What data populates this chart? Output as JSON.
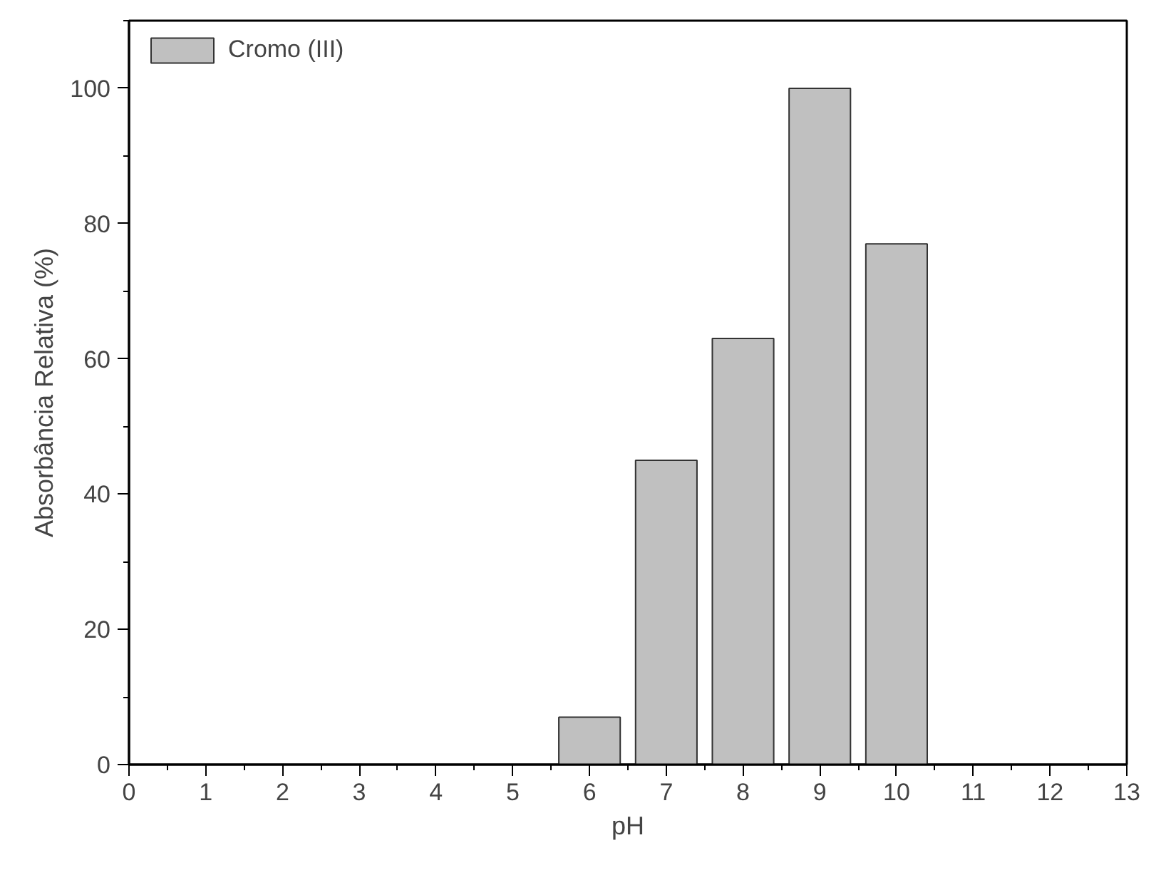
{
  "chart_data": {
    "type": "bar",
    "xlabel": "pH",
    "ylabel": "Absorbância Relativa (%)",
    "x": [
      6,
      7,
      8,
      9,
      10
    ],
    "series": [
      {
        "name": "Cromo (III)",
        "color": "#c0c0c0",
        "values": [
          7,
          45,
          63,
          100,
          77
        ]
      }
    ],
    "xlim": [
      0,
      13
    ],
    "xticks": [
      0,
      1,
      2,
      3,
      4,
      5,
      6,
      7,
      8,
      9,
      10,
      11,
      12,
      13
    ],
    "ylim": [
      0,
      110
    ],
    "yticks": [
      0,
      20,
      40,
      60,
      80,
      100
    ],
    "grid": false,
    "legend": "top left"
  }
}
